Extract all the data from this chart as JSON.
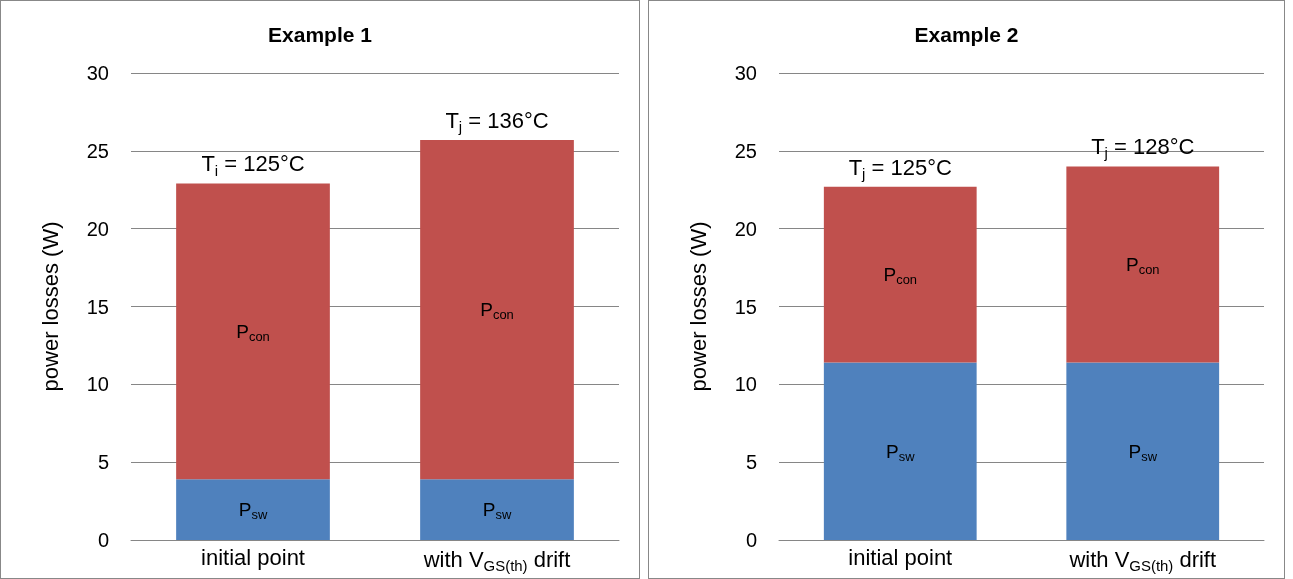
{
  "chart_data": [
    {
      "type": "bar",
      "title": "Example 1",
      "ylabel": "power losses (W)",
      "categories": [
        "initial point",
        "with V$_{GS(th)}$ drift"
      ],
      "stacked": true,
      "series": [
        {
          "name": "P$_{sw}$",
          "color": "#4f81bd",
          "values": [
            3.9,
            3.9
          ]
        },
        {
          "name": "P$_{con}$",
          "color": "#c0504d",
          "values": [
            19.0,
            21.8
          ]
        }
      ],
      "ylim": [
        0,
        30
      ],
      "yticks": [
        0,
        5,
        10,
        15,
        20,
        25,
        30
      ],
      "grid": "y",
      "legend": false,
      "annotations": [
        {
          "text": "T$_{i}$ = 125°C",
          "x": "initial point",
          "y": 22.9
        },
        {
          "text": "T$_{j}$ = 136°C",
          "x": "with V$_{GS(th)}$ drift",
          "y": 25.7
        }
      ]
    },
    {
      "type": "bar",
      "title": "Example 2",
      "ylabel": "power losses (W)",
      "categories": [
        "initial point",
        "with V$_{GS(th)}$ drift"
      ],
      "stacked": true,
      "series": [
        {
          "name": "P$_{sw}$",
          "color": "#4f81bd",
          "values": [
            11.4,
            11.4
          ]
        },
        {
          "name": "P$_{con}$",
          "color": "#c0504d",
          "values": [
            11.3,
            12.6
          ]
        }
      ],
      "ylim": [
        0,
        30
      ],
      "yticks": [
        0,
        5,
        10,
        15,
        20,
        25,
        30
      ],
      "grid": "y",
      "legend": false,
      "annotations": [
        {
          "text": "T$_{j}$ = 125°C",
          "x": "initial point",
          "y": 22.7
        },
        {
          "text": "T$_{j}$ = 128°C",
          "x": "with V$_{GS(th)}$ drift",
          "y": 24.0
        }
      ]
    }
  ]
}
